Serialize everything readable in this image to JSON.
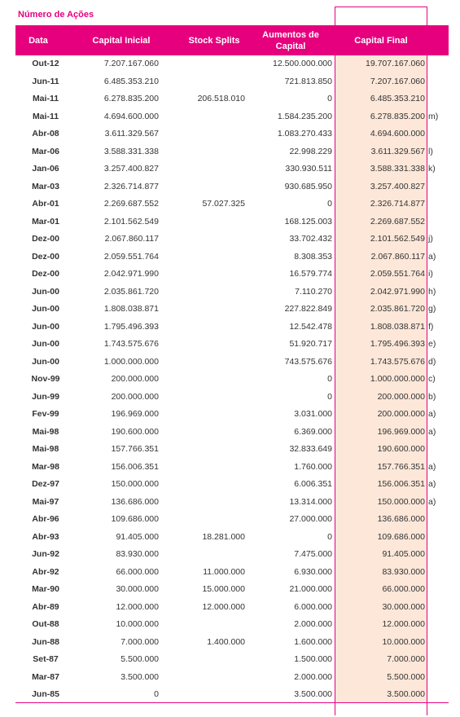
{
  "caption": "Número de Ações",
  "colors": {
    "accent": "#E6007E",
    "highlight_bg": "#FCE7D9",
    "text": "#333333"
  },
  "headers": {
    "date": "Data",
    "initial": "Capital Inicial",
    "splits": "Stock Splits",
    "increases": "Aumentos de Capital",
    "final": "Capital Final"
  },
  "rows": [
    {
      "date": "Out-12",
      "initial": "7.207.167.060",
      "splits": "",
      "increases": "12.500.000.000",
      "final": "19.707.167.060",
      "note": ""
    },
    {
      "date": "Jun-11",
      "initial": "6.485.353.210",
      "splits": "",
      "increases": "721.813.850",
      "final": "7.207.167.060",
      "note": ""
    },
    {
      "date": "Mai-11",
      "initial": "6.278.835.200",
      "splits": "206.518.010",
      "increases": "0",
      "final": "6.485.353.210",
      "note": ""
    },
    {
      "date": "Mai-11",
      "initial": "4.694.600.000",
      "splits": "",
      "increases": "1.584.235.200",
      "final": "6.278.835.200",
      "note": "m)"
    },
    {
      "date": "Abr-08",
      "initial": "3.611.329.567",
      "splits": "",
      "increases": "1.083.270.433",
      "final": "4.694.600.000",
      "note": ""
    },
    {
      "date": "Mar-06",
      "initial": "3.588.331.338",
      "splits": "",
      "increases": "22.998.229",
      "final": "3.611.329.567",
      "note": "l)"
    },
    {
      "date": "Jan-06",
      "initial": "3.257.400.827",
      "splits": "",
      "increases": "330.930.511",
      "final": "3.588.331.338",
      "note": "k)"
    },
    {
      "date": "Mar-03",
      "initial": "2.326.714.877",
      "splits": "",
      "increases": "930.685.950",
      "final": "3.257.400.827",
      "note": ""
    },
    {
      "date": "Abr-01",
      "initial": "2.269.687.552",
      "splits": "57.027.325",
      "increases": "0",
      "final": "2.326.714.877",
      "note": ""
    },
    {
      "date": "Mar-01",
      "initial": "2.101.562.549",
      "splits": "",
      "increases": "168.125.003",
      "final": "2.269.687.552",
      "note": ""
    },
    {
      "date": "Dez-00",
      "initial": "2.067.860.117",
      "splits": "",
      "increases": "33.702.432",
      "final": "2.101.562.549",
      "note": "j)"
    },
    {
      "date": "Dez-00",
      "initial": "2.059.551.764",
      "splits": "",
      "increases": "8.308.353",
      "final": "2.067.860.117",
      "note": "a)"
    },
    {
      "date": "Dez-00",
      "initial": "2.042.971.990",
      "splits": "",
      "increases": "16.579.774",
      "final": "2.059.551.764",
      "note": "i)"
    },
    {
      "date": "Jun-00",
      "initial": "2.035.861.720",
      "splits": "",
      "increases": "7.110.270",
      "final": "2.042.971.990",
      "note": "h)"
    },
    {
      "date": "Jun-00",
      "initial": "1.808.038.871",
      "splits": "",
      "increases": "227.822.849",
      "final": "2.035.861.720",
      "note": "g)"
    },
    {
      "date": "Jun-00",
      "initial": "1.795.496.393",
      "splits": "",
      "increases": "12.542.478",
      "final": "1.808.038.871",
      "note": "f)"
    },
    {
      "date": "Jun-00",
      "initial": "1.743.575.676",
      "splits": "",
      "increases": "51.920.717",
      "final": "1.795.496.393",
      "note": "e)"
    },
    {
      "date": "Jun-00",
      "initial": "1.000.000.000",
      "splits": "",
      "increases": "743.575.676",
      "final": "1.743.575.676",
      "note": "d)"
    },
    {
      "date": "Nov-99",
      "initial": "200.000.000",
      "splits": "",
      "increases": "0",
      "final": "1.000.000.000",
      "note": "c)"
    },
    {
      "date": "Jun-99",
      "initial": "200.000.000",
      "splits": "",
      "increases": "0",
      "final": "200.000.000",
      "note": "b)"
    },
    {
      "date": "Fev-99",
      "initial": "196.969.000",
      "splits": "",
      "increases": "3.031.000",
      "final": "200.000.000",
      "note": "a)"
    },
    {
      "date": "Mai-98",
      "initial": "190.600.000",
      "splits": "",
      "increases": "6.369.000",
      "final": "196.969.000",
      "note": "a)"
    },
    {
      "date": "Mai-98",
      "initial": "157.766.351",
      "splits": "",
      "increases": "32.833.649",
      "final": "190.600.000",
      "note": ""
    },
    {
      "date": "Mar-98",
      "initial": "156.006.351",
      "splits": "",
      "increases": "1.760.000",
      "final": "157.766.351",
      "note": "a)"
    },
    {
      "date": "Dez-97",
      "initial": "150.000.000",
      "splits": "",
      "increases": "6.006.351",
      "final": "156.006.351",
      "note": "a)"
    },
    {
      "date": "Mai-97",
      "initial": "136.686.000",
      "splits": "",
      "increases": "13.314.000",
      "final": "150.000.000",
      "note": "a)"
    },
    {
      "date": "Abr-96",
      "initial": "109.686.000",
      "splits": "",
      "increases": "27.000.000",
      "final": "136.686.000",
      "note": ""
    },
    {
      "date": "Abr-93",
      "initial": "91.405.000",
      "splits": "18.281.000",
      "increases": "0",
      "final": "109.686.000",
      "note": ""
    },
    {
      "date": "Jun-92",
      "initial": "83.930.000",
      "splits": "",
      "increases": "7.475.000",
      "final": "91.405.000",
      "note": ""
    },
    {
      "date": "Abr-92",
      "initial": "66.000.000",
      "splits": "11.000.000",
      "increases": "6.930.000",
      "final": "83.930.000",
      "note": ""
    },
    {
      "date": "Mar-90",
      "initial": "30.000.000",
      "splits": "15.000.000",
      "increases": "21.000.000",
      "final": "66.000.000",
      "note": ""
    },
    {
      "date": "Abr-89",
      "initial": "12.000.000",
      "splits": "12.000.000",
      "increases": "6.000.000",
      "final": "30.000.000",
      "note": ""
    },
    {
      "date": "Out-88",
      "initial": "10.000.000",
      "splits": "",
      "increases": "2.000.000",
      "final": "12.000.000",
      "note": ""
    },
    {
      "date": "Jun-88",
      "initial": "7.000.000",
      "splits": "1.400.000",
      "increases": "1.600.000",
      "final": "10.000.000",
      "note": ""
    },
    {
      "date": "Set-87",
      "initial": "5.500.000",
      "splits": "",
      "increases": "1.500.000",
      "final": "7.000.000",
      "note": ""
    },
    {
      "date": "Mar-87",
      "initial": "3.500.000",
      "splits": "",
      "increases": "2.000.000",
      "final": "5.500.000",
      "note": ""
    },
    {
      "date": "Jun-85",
      "initial": "0",
      "splits": "",
      "increases": "3.500.000",
      "final": "3.500.000",
      "note": ""
    }
  ]
}
